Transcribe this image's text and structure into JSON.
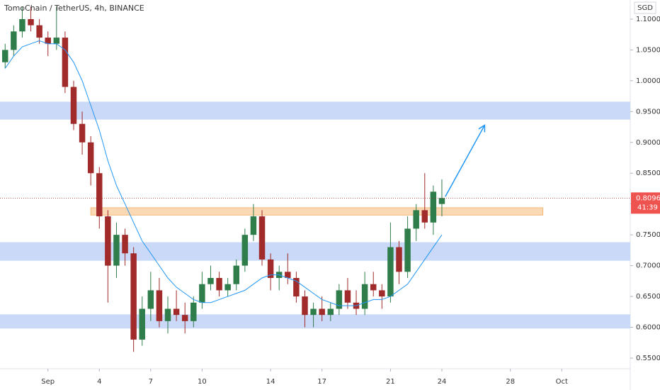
{
  "chart_data": {
    "type": "candlestick",
    "title": "TomoChain / TetherUS, 4h, BINANCE",
    "currency": "SGD",
    "last_price": 0.8096,
    "countdown": "41:39",
    "xlim": [
      -1.8,
      35
    ],
    "ylim": [
      0.5385,
      1.131
    ],
    "xticks": [
      {
        "value": 1,
        "label": "Sep"
      },
      4,
      7,
      10,
      14,
      17,
      21,
      24,
      28,
      {
        "value": 31,
        "label": "Oct"
      }
    ],
    "yticks": [
      {
        "value": 0.55,
        "label": "0.5500"
      },
      {
        "value": 0.6,
        "label": "0.6000"
      },
      {
        "value": 0.65,
        "label": "0.6500"
      },
      {
        "value": 0.7,
        "label": "0.7000"
      },
      {
        "value": 0.75,
        "label": "0.7500"
      },
      {
        "value": 0.8,
        "label": "0.8000"
      },
      {
        "value": 0.85,
        "label": "0.8500"
      },
      {
        "value": 0.9,
        "label": "0.9000"
      },
      {
        "value": 0.95,
        "label": "0.9500"
      },
      {
        "value": 1.0,
        "label": "1.0000"
      },
      {
        "value": 1.05,
        "label": "1.0500"
      },
      {
        "value": 1.1,
        "label": "1.1000"
      }
    ],
    "grid": false,
    "up_color": "#2f7d4b",
    "down_color": "#a12a2a",
    "x": [
      -1.5,
      -1,
      -0.5,
      0,
      0.5,
      1,
      1.5,
      2,
      2.5,
      3,
      3.5,
      4,
      4.5,
      5,
      5.5,
      6,
      6.5,
      7,
      7.5,
      8,
      8.5,
      9,
      9.5,
      10,
      10.5,
      11,
      11.5,
      12,
      12.5,
      13,
      13.5,
      14,
      14.5,
      15,
      15.5,
      16,
      16.5,
      17,
      17.5,
      18,
      18.5,
      19,
      19.5,
      20,
      20.5,
      21,
      21.5,
      22,
      22.5,
      23,
      23.5,
      24
    ],
    "open": [
      1.03,
      1.05,
      1.08,
      1.1,
      1.09,
      1.07,
      1.06,
      1.07,
      0.99,
      0.93,
      0.9,
      0.85,
      0.78,
      0.7,
      0.75,
      0.72,
      0.58,
      0.63,
      0.66,
      0.61,
      0.63,
      0.62,
      0.61,
      0.64,
      0.67,
      0.68,
      0.66,
      0.67,
      0.7,
      0.75,
      0.78,
      0.71,
      0.68,
      0.69,
      0.68,
      0.65,
      0.62,
      0.63,
      0.62,
      0.63,
      0.66,
      0.64,
      0.63,
      0.67,
      0.66,
      0.65,
      0.73,
      0.69,
      0.76,
      0.79,
      0.77,
      0.8
    ],
    "high": [
      1.06,
      1.09,
      1.12,
      1.12,
      1.1,
      1.08,
      1.12,
      1.08,
      1.0,
      0.95,
      0.91,
      0.86,
      0.79,
      0.77,
      0.76,
      0.73,
      0.65,
      0.69,
      0.68,
      0.65,
      0.66,
      0.64,
      0.65,
      0.69,
      0.7,
      0.69,
      0.68,
      0.71,
      0.76,
      0.8,
      0.79,
      0.72,
      0.7,
      0.72,
      0.69,
      0.66,
      0.64,
      0.65,
      0.64,
      0.67,
      0.68,
      0.66,
      0.69,
      0.69,
      0.67,
      0.77,
      0.74,
      0.78,
      0.8,
      0.85,
      0.83,
      0.84
    ],
    "low": [
      1.02,
      1.04,
      1.07,
      1.08,
      1.06,
      1.04,
      1.05,
      0.98,
      0.92,
      0.88,
      0.83,
      0.76,
      0.64,
      0.68,
      0.7,
      0.56,
      0.57,
      0.61,
      0.6,
      0.59,
      0.61,
      0.59,
      0.6,
      0.63,
      0.66,
      0.65,
      0.65,
      0.66,
      0.69,
      0.74,
      0.7,
      0.66,
      0.66,
      0.67,
      0.64,
      0.6,
      0.6,
      0.61,
      0.61,
      0.62,
      0.63,
      0.62,
      0.62,
      0.65,
      0.63,
      0.64,
      0.67,
      0.68,
      0.74,
      0.76,
      0.75,
      0.78
    ],
    "close": [
      1.05,
      1.08,
      1.1,
      1.09,
      1.07,
      1.06,
      1.07,
      0.99,
      0.93,
      0.9,
      0.85,
      0.78,
      0.7,
      0.75,
      0.72,
      0.58,
      0.63,
      0.66,
      0.61,
      0.63,
      0.62,
      0.61,
      0.64,
      0.67,
      0.68,
      0.66,
      0.67,
      0.7,
      0.75,
      0.78,
      0.71,
      0.68,
      0.69,
      0.68,
      0.65,
      0.62,
      0.63,
      0.62,
      0.63,
      0.66,
      0.64,
      0.63,
      0.67,
      0.66,
      0.65,
      0.73,
      0.69,
      0.76,
      0.79,
      0.77,
      0.82,
      0.8096
    ],
    "ema": {
      "color": "#2196f3",
      "values": [
        1.02,
        1.04,
        1.055,
        1.06,
        1.065,
        1.06,
        1.06,
        1.05,
        1.03,
        1.0,
        0.96,
        0.92,
        0.87,
        0.83,
        0.8,
        0.77,
        0.74,
        0.72,
        0.7,
        0.68,
        0.665,
        0.655,
        0.645,
        0.64,
        0.64,
        0.645,
        0.65,
        0.655,
        0.66,
        0.67,
        0.68,
        0.685,
        0.685,
        0.68,
        0.675,
        0.665,
        0.655,
        0.645,
        0.64,
        0.635,
        0.635,
        0.635,
        0.64,
        0.645,
        0.645,
        0.65,
        0.66,
        0.67,
        0.69,
        0.71,
        0.73,
        0.75
      ]
    },
    "zones": [
      {
        "from": 0.937,
        "to": 0.966,
        "color": "#c9d9f7"
      },
      {
        "from": 0.708,
        "to": 0.738,
        "color": "#c9d9f7"
      },
      {
        "from": 0.598,
        "to": 0.621,
        "color": "#c9d9f7"
      },
      {
        "from": 0.782,
        "to": 0.794,
        "x_from": 3.5,
        "x_to": 29.9,
        "color": "#fbd9b5"
      }
    ],
    "arrow": {
      "x": [
        24.2,
        26.5
      ],
      "y": [
        0.812,
        0.928
      ],
      "color": "#2196f3"
    }
  }
}
